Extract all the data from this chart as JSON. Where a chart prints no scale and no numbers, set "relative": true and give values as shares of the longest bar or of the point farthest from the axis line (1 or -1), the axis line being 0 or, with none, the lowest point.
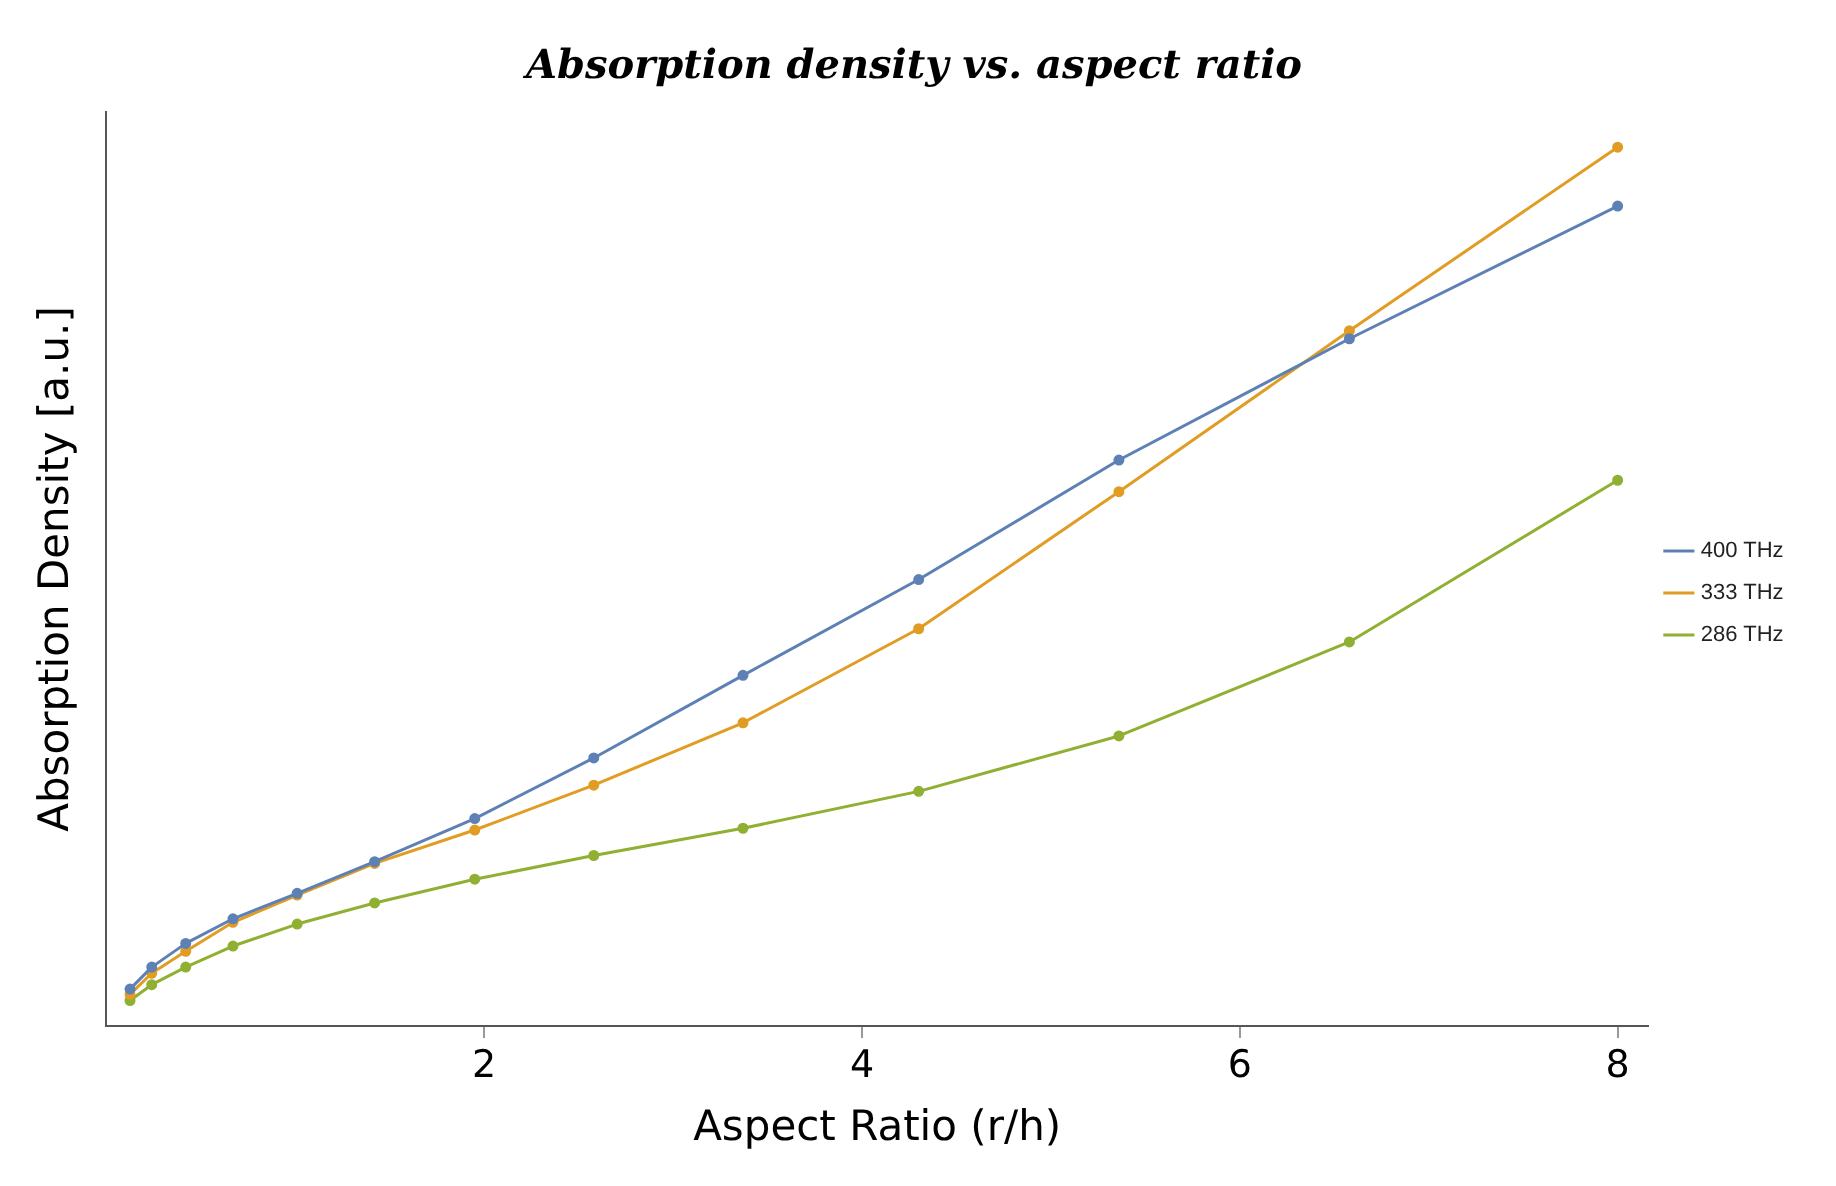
{
  "chart_data": {
    "type": "line",
    "title": "Absorption density vs. aspect ratio",
    "xlabel": "Aspect Ratio (r/h)",
    "ylabel": "Absorption Density [a.u.]",
    "relative": true,
    "x": [
      0.125,
      0.24,
      0.42,
      0.67,
      1.01,
      1.42,
      1.95,
      2.58,
      3.37,
      4.3,
      5.36,
      6.58,
      8.0
    ],
    "xlim": [
      0,
      8.16
    ],
    "xticks": [
      2,
      4,
      6,
      8
    ],
    "grid": false,
    "legend": "right",
    "marker": "circle",
    "line_style": "solid",
    "series": [
      {
        "name": "400 THz",
        "color": "#5e81b5",
        "values": [
          0.042,
          0.067,
          0.094,
          0.122,
          0.151,
          0.187,
          0.236,
          0.305,
          0.399,
          0.508,
          0.644,
          0.782,
          0.933
        ]
      },
      {
        "name": "333 THz",
        "color": "#e19c24",
        "values": [
          0.036,
          0.06,
          0.085,
          0.118,
          0.149,
          0.185,
          0.223,
          0.274,
          0.345,
          0.452,
          0.608,
          0.791,
          1
        ]
      },
      {
        "name": "286 THz",
        "color": "#8fb032",
        "values": [
          0.029,
          0.047,
          0.067,
          0.091,
          0.116,
          0.14,
          0.167,
          0.194,
          0.225,
          0.267,
          0.33,
          0.437,
          0.621
        ]
      }
    ]
  }
}
